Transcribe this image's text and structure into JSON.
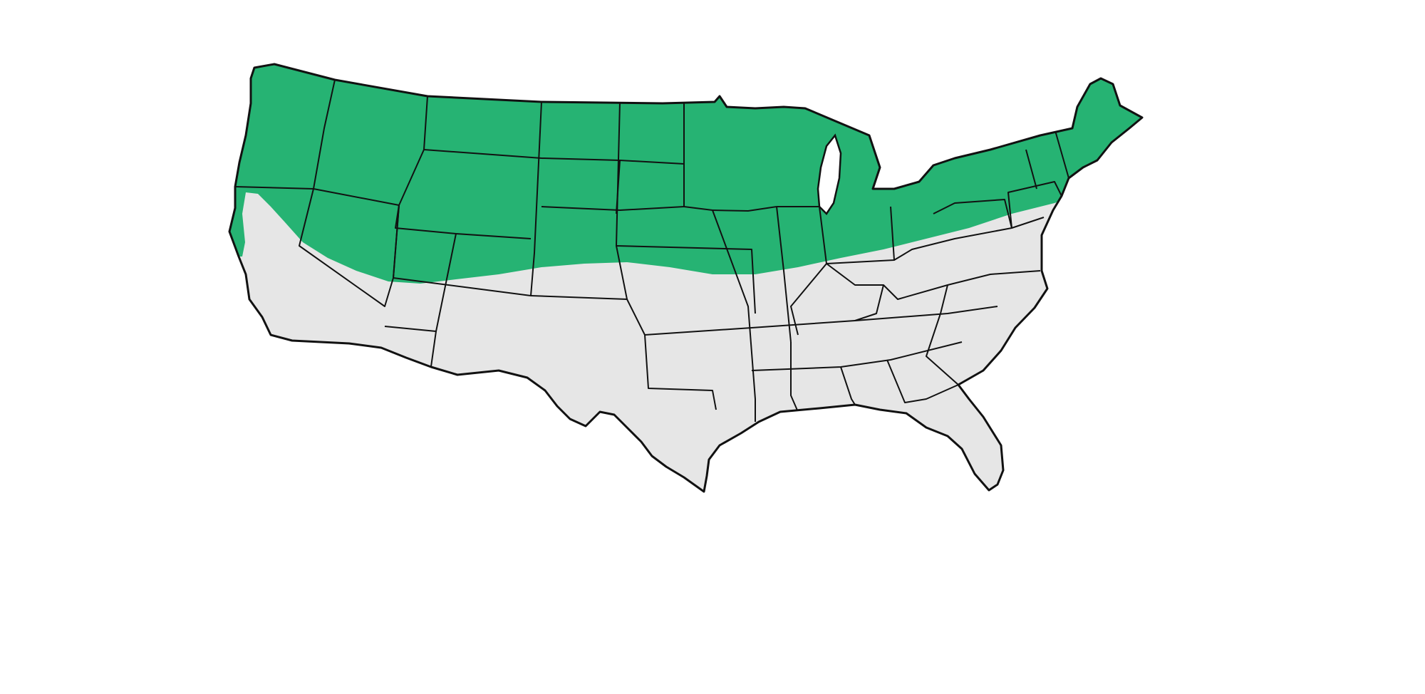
{
  "map": {
    "subject": "contiguous-united-states",
    "highlighted_band": "northern-states",
    "colors": {
      "background": "#ffffff",
      "land": "#e6e6e6",
      "highlighted_region": "#26b373",
      "border": "#111111",
      "water": "#ffffff"
    }
  }
}
